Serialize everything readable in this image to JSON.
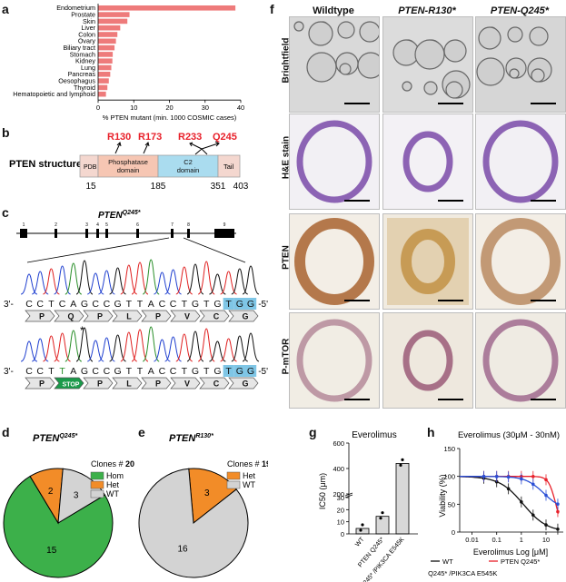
{
  "panel_labels": {
    "a": "a",
    "b": "b",
    "c": "c",
    "d": "d",
    "e": "e",
    "f": "f",
    "g": "g",
    "h": "h"
  },
  "panel_a": {
    "categories": [
      "Endometrium",
      "Prostate",
      "Skin",
      "Liver",
      "Colon",
      "Ovary",
      "Biliary tract",
      "Stomach",
      "Kidney",
      "Lung",
      "Pancreas",
      "Oesophagus",
      "Thyroid",
      "Hematopoietic and lymphoid"
    ],
    "values": [
      38.5,
      8.8,
      8.2,
      6.2,
      5.4,
      5.0,
      4.6,
      4.1,
      4.0,
      3.7,
      3.4,
      3.0,
      2.6,
      2.2
    ],
    "ticks": [
      "0",
      "10",
      "20",
      "30",
      "40"
    ],
    "xlabel": "% PTEN mutant (min. 1000 COSMIC cases)",
    "color": "#ee7b7b"
  },
  "panel_b": {
    "title": "PTEN structure",
    "mutations": [
      "R130",
      "R173",
      "R233",
      "Q245"
    ],
    "domains": [
      {
        "label": "PDB",
        "color": "#f4d7cf"
      },
      {
        "label": "Phosphatase domain",
        "color": "#f6c6b3"
      },
      {
        "label": "C2 domain",
        "color": "#aadcef"
      },
      {
        "label": "Tail",
        "color": "#f4d7cf"
      }
    ],
    "positions": [
      "15",
      "185",
      "351",
      "403"
    ],
    "mut_color": "#e8202a"
  },
  "panel_c": {
    "gene_label": "PTEN",
    "gene_sup": "Q245*",
    "exons": [
      "1",
      "2",
      "3",
      "4",
      "5",
      "6",
      "7",
      "8",
      "9"
    ],
    "wt_prefix": "3'-",
    "wt_seq": [
      "C",
      "C",
      "T",
      "C",
      "A",
      "G",
      "C",
      "C",
      "G",
      "T",
      "T",
      "A",
      "C",
      "C",
      "T",
      "G",
      "T",
      "G",
      "T",
      "G",
      "G"
    ],
    "wt_suffix": "-5'",
    "wt_aa": [
      "P",
      "Q",
      "P",
      "L",
      "P",
      "V",
      "C",
      "G"
    ],
    "mut_seq": [
      "C",
      "C",
      "T",
      "T",
      "A",
      "G",
      "C",
      "C",
      "G",
      "T",
      "T",
      "A",
      "C",
      "C",
      "T",
      "G",
      "T",
      "G",
      "T",
      "G",
      "G"
    ],
    "mut_aa": [
      "P",
      "STOP",
      "P",
      "L",
      "P",
      "V",
      "C",
      "G"
    ],
    "asterisk": "*"
  },
  "panel_d": {
    "title": "PTEN",
    "title_sup": "Q245*",
    "clones_label": "Clones #",
    "clones_n": "20",
    "slices": [
      {
        "label": "Hom",
        "value": 15,
        "color": "#3cb04a"
      },
      {
        "label": "Het",
        "value": 2,
        "color": "#f28c28"
      },
      {
        "label": "WT",
        "value": 3,
        "color": "#d3d3d3"
      }
    ]
  },
  "panel_e": {
    "title": "PTEN",
    "title_sup": "R130*",
    "clones_label": "Clones #",
    "clones_n": "19",
    "slices": [
      {
        "label": "Het",
        "value": 3,
        "color": "#f28c28"
      },
      {
        "label": "WT",
        "value": 16,
        "color": "#d3d3d3"
      }
    ]
  },
  "panel_f": {
    "columns": [
      "Wildtype",
      "PTEN-R130*",
      "PTEN-Q245*"
    ],
    "rows": [
      "Brightfield",
      "H&E stain",
      "PTEN",
      "P-mTOR"
    ]
  },
  "panel_g": {
    "title": "Everolimus",
    "ylabel": "IC50 (μm)",
    "yticks": [
      "0",
      "10",
      "20",
      "30",
      "200",
      "400",
      "600"
    ],
    "bars": [
      {
        "label": "WT",
        "value": 4.5
      },
      {
        "label": "PTEN Q245*",
        "value": 14.5
      },
      {
        "label": "PTEN Q245* /PIK3CA E545K",
        "value": 440
      }
    ]
  },
  "panel_h": {
    "title": "Everolimus (30μM - 30nM)",
    "ylabel": "Viability (%)",
    "xlabel": "Everolimus Log [μM]",
    "yticks": [
      "0",
      "50",
      "100",
      "150"
    ],
    "xticks": [
      "0.01",
      "0.1",
      "1",
      "10"
    ],
    "legend": [
      {
        "label": "WT",
        "color": "#111111"
      },
      {
        "label": "PTEN Q245*",
        "color": "#e8202a"
      },
      {
        "label": "PTEN Q245* /PIK3CA E545K",
        "color": "#2a4fd6"
      }
    ]
  }
}
